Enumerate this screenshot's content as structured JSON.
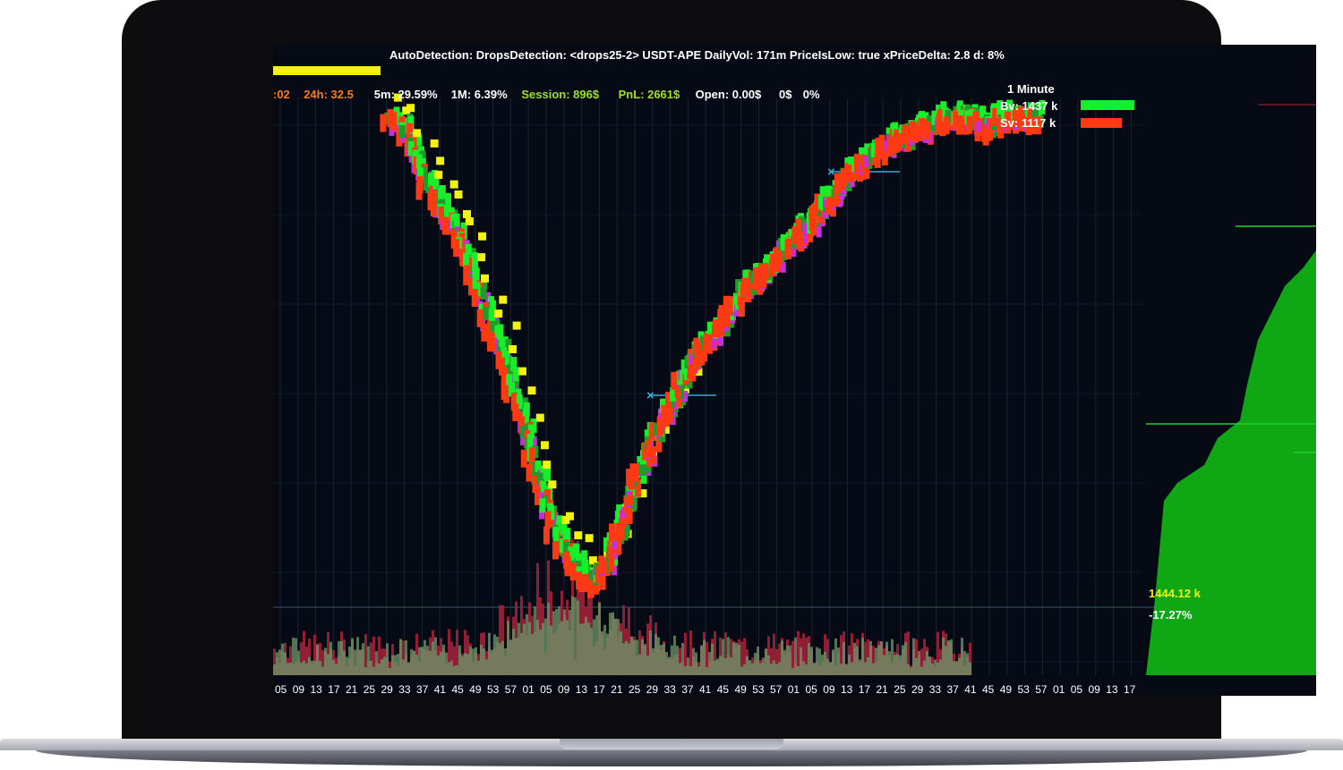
{
  "header": {
    "detection": "AutoDetection:  DropsDetection: <drops25-2> USDT-APE  DailyVol: 171m PriceIsLow: true xPriceDelta: 2.8  d: 8%"
  },
  "stats": [
    {
      "text": ":02",
      "color": "#ff7a1a"
    },
    {
      "text": "24h: 32.5",
      "color": "#ff7a1a"
    },
    {
      "text": "5m: 29.59%",
      "color": "#ffffff"
    },
    {
      "text": "1M: 6.39%",
      "color": "#ffffff"
    },
    {
      "text": "Session: 896$",
      "color": "#9fe02a"
    },
    {
      "text": "PnL: 2661$",
      "color": "#9fe02a"
    },
    {
      "text": "Open: 0.00$",
      "color": "#ffffff"
    },
    {
      "text": "0$",
      "color": "#ffffff"
    },
    {
      "text": "0%",
      "color": "#ffffff"
    }
  ],
  "legend": {
    "interval": "1 Minute",
    "bv": "Bv: 1437 k",
    "sv": "Sv: 1117 k",
    "bv_color": "#19ee2a",
    "sv_color": "#ff3a12"
  },
  "depth": {
    "volume_label": "1444.12 k",
    "percent_label": "-17.27%",
    "fill_color": "#0fa814"
  },
  "x_axis": {
    "ticks": [
      "05",
      "09",
      "13",
      "17",
      "21",
      "25",
      "29",
      "33",
      "37",
      "41",
      "45",
      "49",
      "53",
      "57",
      "01",
      "05",
      "09",
      "13",
      "17",
      "21",
      "25",
      "29",
      "33",
      "37",
      "41",
      "45",
      "49",
      "53",
      "57",
      "01",
      "05",
      "09",
      "13",
      "17",
      "21",
      "25",
      "29",
      "33",
      "37",
      "41",
      "45",
      "49",
      "53",
      "57",
      "01",
      "05",
      "09",
      "13",
      "17"
    ]
  },
  "colors": {
    "background": "#060a14",
    "buy": "#19ee2a",
    "sell": "#ff3a12",
    "high": "#f2f20d",
    "low": "#c62ce0",
    "mid": "#1c9c2a",
    "marker": "#3aa8d8"
  },
  "chart_data": {
    "type": "scatter",
    "description_series": [
      "buy",
      "sell",
      "high",
      "low"
    ],
    "x": [
      0,
      4,
      8,
      12,
      16,
      20,
      24,
      28,
      32,
      36,
      40,
      44,
      48,
      52,
      56,
      60,
      64,
      68,
      72,
      76,
      80,
      84,
      88,
      92,
      96,
      100,
      104,
      108,
      112,
      116,
      120,
      124,
      128,
      132,
      136,
      140,
      144,
      148,
      152,
      156,
      160,
      164,
      168,
      172,
      176,
      180,
      184,
      188,
      192
    ],
    "price": [
      100,
      99,
      96,
      93,
      91,
      89,
      86,
      82,
      79,
      75,
      71,
      66,
      62,
      60,
      58,
      57,
      59,
      62,
      66,
      69,
      72,
      74,
      77,
      79,
      80,
      82,
      84,
      85,
      86,
      88,
      89,
      90,
      92,
      93,
      95,
      96,
      97,
      98,
      98,
      99,
      99,
      100,
      100,
      100,
      99,
      100,
      100,
      100,
      100
    ]
  }
}
